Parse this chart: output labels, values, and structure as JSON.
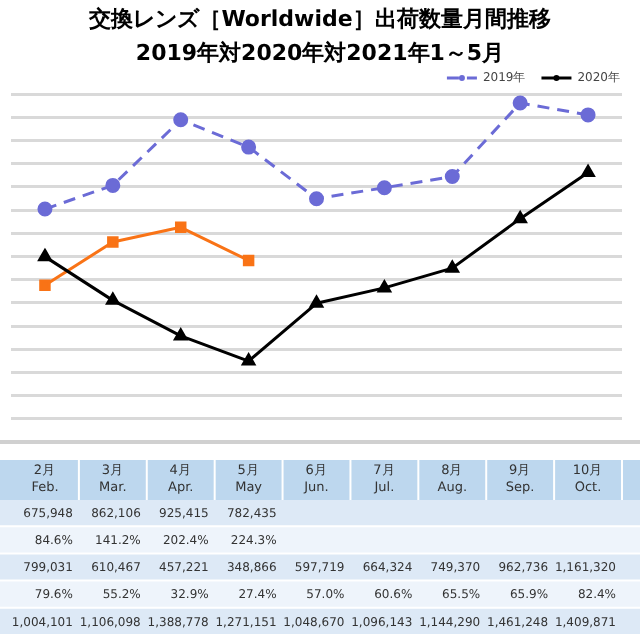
{
  "chart_data": {
    "type": "line",
    "title": "交換レンズ［Worldwide］出荷数量月間推移",
    "subtitle": "2019年対2020年対2021年1～5月",
    "categories": [
      "2月\nFeb.",
      "3月\nMar.",
      "4月\nApr.",
      "5月\nMay",
      "6月\nJun.",
      "7月\nJul.",
      "8月\nAug.",
      "9月\nSep.",
      "10月\nOct."
    ],
    "series": [
      {
        "name": "2019年",
        "color": "#6b6bd6",
        "marker": "circle",
        "line_style": "dashed",
        "values": [
          1004101,
          1106098,
          1388778,
          1271151,
          1048670,
          1096143,
          1144290,
          1461248,
          1409871
        ],
        "value_labels": [
          "1,004,101",
          "1,106,098",
          "1,388,778",
          "1,271,151",
          "1,048,670",
          "1,096,143",
          "1,144,290",
          "1,461,248",
          "1,409,871"
        ]
      },
      {
        "name": "2020年",
        "color": "#000000",
        "marker": "triangle",
        "line_style": "solid",
        "values": [
          799031,
          610467,
          457221,
          348866,
          597719,
          664324,
          749370,
          962736,
          1161320
        ],
        "value_labels": [
          "799,031",
          "610,467",
          "457,221",
          "348,866",
          "597,719",
          "664,324",
          "749,370",
          "962,736",
          "1,161,320"
        ]
      },
      {
        "color": "#f97316",
        "marker": "square",
        "line_style": "solid",
        "values": [
          675948,
          862106,
          925415,
          782435,
          null,
          null,
          null,
          null,
          null
        ],
        "value_labels": [
          "675,948",
          "862,106",
          "925,415",
          "782,435",
          null,
          null,
          null,
          null,
          null
        ]
      }
    ],
    "annotations": [
      "84.6%",
      "141.2%",
      "202.4%",
      "224.3%",
      "79.6%",
      "55.2%",
      "32.9%",
      "27.4%",
      "57.0%",
      "60.6%",
      "65.5%",
      "65.9%",
      "82.4%"
    ],
    "ylim": [
      0,
      1500000
    ],
    "yticks": [
      {
        "value": 0,
        "label": null
      },
      {
        "value": 100000,
        "label": null
      },
      {
        "value": 200000,
        "label": null
      },
      {
        "value": 300000,
        "label": null
      },
      {
        "value": 400000,
        "label": null
      },
      {
        "value": 500000,
        "label": null
      },
      {
        "value": 600000,
        "label": null
      },
      {
        "value": 700000,
        "label": null
      },
      {
        "value": 800000,
        "label": null
      },
      {
        "value": 900000,
        "label": null
      },
      {
        "value": 1000000,
        "label": null
      },
      {
        "value": 1100000,
        "label": null
      },
      {
        "value": 1200000,
        "label": null
      },
      {
        "value": 1300000,
        "label": null
      },
      {
        "value": 1400000,
        "label": null
      },
      {
        "value": 1500000,
        "label": null
      }
    ],
    "grid": "y",
    "legend": "top right",
    "tick_labels": false
  }
}
